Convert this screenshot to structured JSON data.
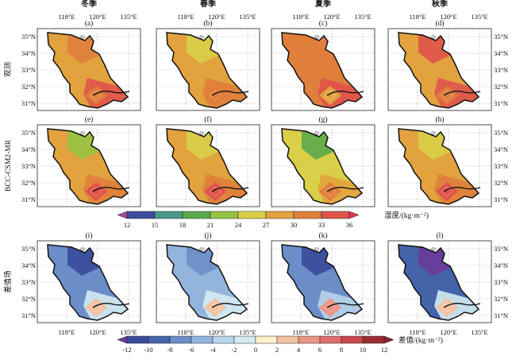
{
  "columns": [
    {
      "season": "冬季",
      "labels": [
        "(a)",
        "(e)",
        "(i)"
      ]
    },
    {
      "season": "春季",
      "labels": [
        "(b)",
        "(f)",
        "(j)"
      ]
    },
    {
      "season": "夏季",
      "labels": [
        "(c)",
        "(g)",
        "(k)"
      ]
    },
    {
      "season": "秋季",
      "labels": [
        "(d)",
        "(h)",
        "(l)"
      ]
    }
  ],
  "rows": [
    "观测",
    "BCC-CSM2-MR",
    "差值场"
  ],
  "lon_ticks": [
    "118°E",
    "120°E",
    "135°E"
  ],
  "lat_ticks": [
    "35°N",
    "34°N",
    "33°N",
    "32°N",
    "31°N"
  ],
  "colorbar_humidity": {
    "title": "湿度/(kg·m⁻²)",
    "ticks": [
      "12",
      "15",
      "18",
      "21",
      "24",
      "27",
      "30",
      "33",
      "36"
    ],
    "colors": [
      "#3f4c9a",
      "#4a9a8c",
      "#5aaa4a",
      "#96c243",
      "#d9cf48",
      "#e2a23e",
      "#e07e3c",
      "#e0534a"
    ],
    "over_color": "#e0364e",
    "under_color": "#a64a9c"
  },
  "colorbar_diff": {
    "title": "差值/(kg·m⁻²)",
    "ticks": [
      "-12",
      "-10",
      "-8",
      "-6",
      "-4",
      "-2",
      "0",
      "2",
      "4",
      "6",
      "8",
      "10",
      "12"
    ],
    "colors": [
      "#3a4a9a",
      "#4463a9",
      "#6b8ec8",
      "#93b4dc",
      "#b8d4ea",
      "#d4ebf2",
      "#fdf2cc",
      "#f4c2a2",
      "#ec9686",
      "#e06c6c",
      "#c8484c",
      "#9c2c34"
    ],
    "over_color": "#8a2030",
    "under_color": "#6a3a9a"
  },
  "panels": [
    {
      "id": "a",
      "field": "obs",
      "season": "winter",
      "base": "#e2a23e",
      "ne": "#e07e3c",
      "se": "#e0534a",
      "center": "#e07e3c"
    },
    {
      "id": "b",
      "field": "obs",
      "season": "spring",
      "base": "#e2a23e",
      "ne": "#d9cf48",
      "se": "#e07e3c",
      "center": "#e07e3c"
    },
    {
      "id": "c",
      "field": "obs",
      "season": "summer",
      "base": "#e07e3c",
      "ne": "#e07e3c",
      "se": "#e0534a",
      "center": "#e2a23e"
    },
    {
      "id": "d",
      "field": "obs",
      "season": "autumn",
      "base": "#e2a23e",
      "ne": "#e0534a",
      "se": "#e0534a",
      "center": "#e07e3c"
    },
    {
      "id": "e",
      "field": "model",
      "season": "winter",
      "base": "#e2a23e",
      "ne": "#96c243",
      "se": "#e07e3c",
      "center": "#e0534a"
    },
    {
      "id": "f",
      "field": "model",
      "season": "spring",
      "base": "#e2a23e",
      "ne": "#d9cf48",
      "se": "#e07e3c",
      "center": "#e0534a"
    },
    {
      "id": "g",
      "field": "model",
      "season": "summer",
      "base": "#d9cf48",
      "ne": "#5aaa4a",
      "se": "#e2a23e",
      "center": "#e07e3c"
    },
    {
      "id": "h",
      "field": "model",
      "season": "autumn",
      "base": "#e2a23e",
      "ne": "#d9cf48",
      "se": "#e07e3c",
      "center": "#e0534a"
    },
    {
      "id": "i",
      "field": "diff",
      "season": "winter",
      "base": "#6b8ec8",
      "ne": "#3a4a9a",
      "se": "#d4ebf2",
      "center": "#f4c2a2"
    },
    {
      "id": "j",
      "field": "diff",
      "season": "spring",
      "base": "#93b4dc",
      "ne": "#6b8ec8",
      "se": "#d4ebf2",
      "center": "#f4c2a2"
    },
    {
      "id": "k",
      "field": "diff",
      "season": "summer",
      "base": "#6b8ec8",
      "ne": "#3a4a9a",
      "se": "#b8d4ea",
      "center": "#ec9686"
    },
    {
      "id": "l",
      "field": "diff",
      "season": "autumn",
      "base": "#4463a9",
      "ne": "#6a3a9a",
      "se": "#d4ebf2",
      "center": "#f4c2a2"
    }
  ]
}
